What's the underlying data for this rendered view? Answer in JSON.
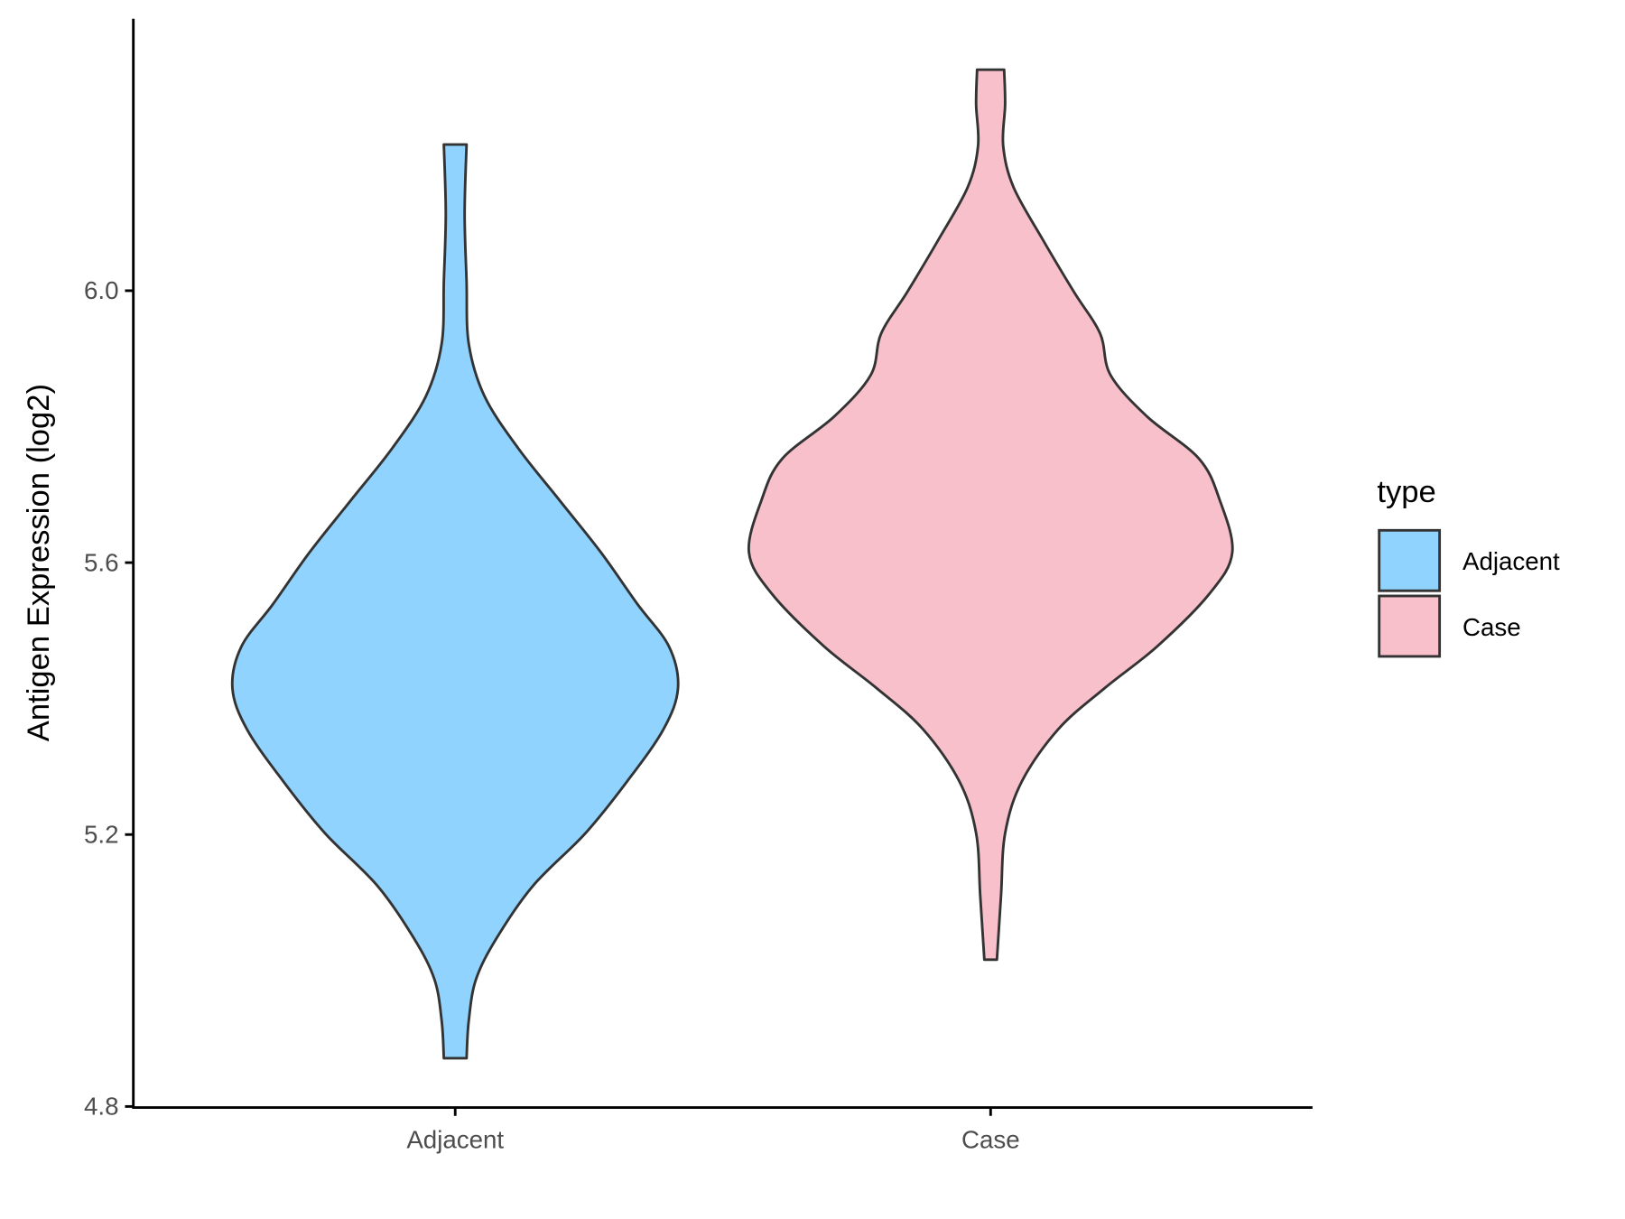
{
  "chart_data": {
    "type": "violin",
    "title": "",
    "xlabel": "",
    "ylabel": "Antigen Expression (log2)",
    "ylim": [
      4.8,
      6.38
    ],
    "yticks": [
      "4.8",
      "5.2",
      "5.6",
      "6.0"
    ],
    "ytick_values": [
      4.8,
      5.2,
      5.6,
      6.0
    ],
    "categories": [
      "Adjacent",
      "Case"
    ],
    "grid": false,
    "legend": {
      "title": "type",
      "placement": "right",
      "entries": [
        "Adjacent",
        "Case"
      ]
    },
    "colors": {
      "Adjacent": "#8fd3fe",
      "Case": "#f8c0cb",
      "outline": "#333333"
    },
    "series": [
      {
        "name": "Adjacent",
        "y": [
          6.215,
          6.113,
          6.014,
          5.922,
          5.845,
          5.769,
          5.692,
          5.615,
          5.539,
          5.477,
          5.416,
          5.355,
          5.278,
          5.202,
          5.125,
          5.048,
          4.987,
          4.926,
          4.871
        ],
        "density": [
          0.047,
          0.039,
          0.047,
          0.056,
          0.121,
          0.259,
          0.431,
          0.603,
          0.754,
          0.884,
          0.922,
          0.862,
          0.711,
          0.539,
          0.323,
          0.172,
          0.086,
          0.056,
          0.047
        ]
      },
      {
        "name": "Case",
        "y": [
          6.325,
          6.274,
          6.213,
          6.152,
          6.075,
          5.998,
          5.937,
          5.876,
          5.815,
          5.753,
          5.692,
          5.615,
          5.554,
          5.477,
          5.416,
          5.355,
          5.278,
          5.202,
          5.11,
          5.016
        ],
        "density": [
          0.056,
          0.06,
          0.052,
          0.095,
          0.216,
          0.345,
          0.453,
          0.496,
          0.647,
          0.862,
          0.948,
          1.0,
          0.905,
          0.69,
          0.474,
          0.28,
          0.129,
          0.06,
          0.043,
          0.026
        ]
      }
    ]
  }
}
